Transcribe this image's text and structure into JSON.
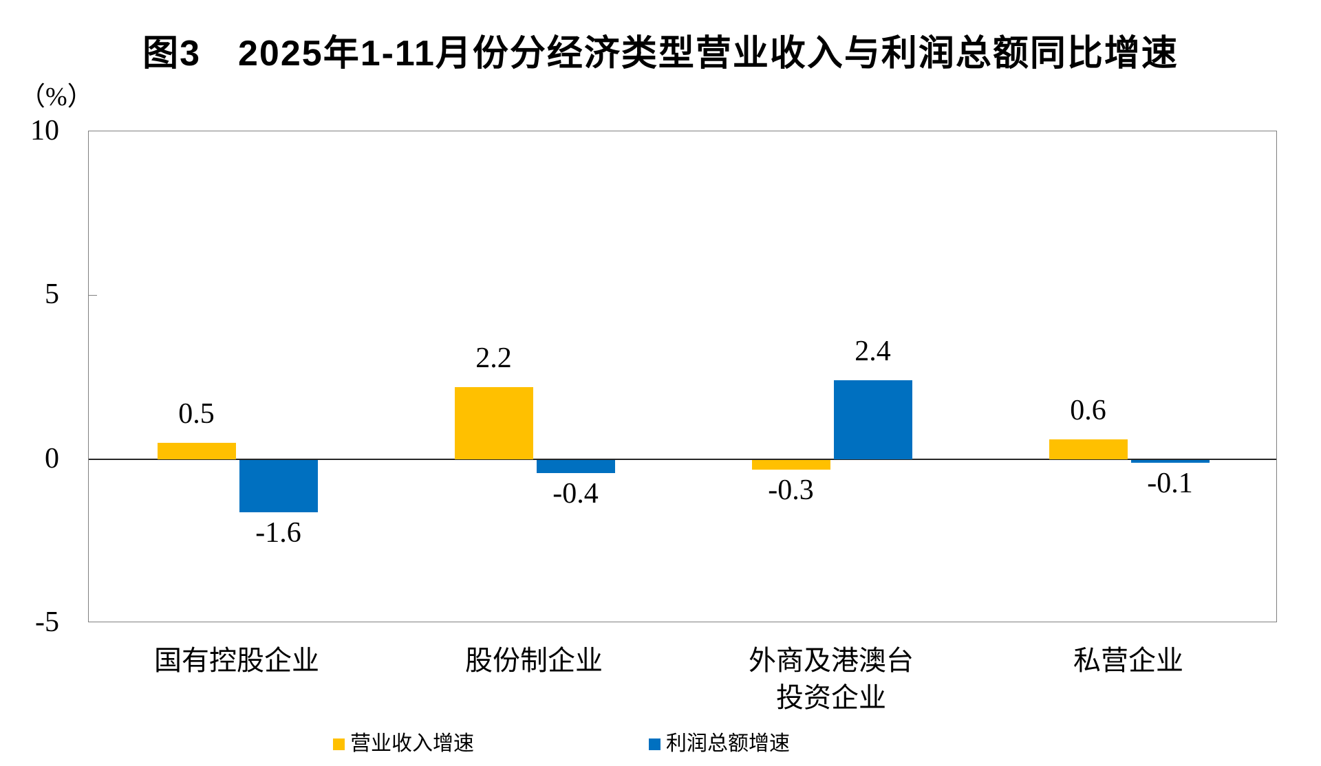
{
  "title": "图3　2025年1-11月份分经济类型营业收入与利润总额同比增速",
  "unit_label": "（%）",
  "chart_data": {
    "type": "bar",
    "categories": [
      "国有控股企业",
      "股份制企业",
      "外商及港澳台\n投资企业",
      "私营企业"
    ],
    "series": [
      {
        "name": "营业收入增速",
        "color": "#FFC000",
        "values": [
          0.5,
          2.2,
          -0.3,
          0.6
        ]
      },
      {
        "name": "利润总额增速",
        "color": "#0070C0",
        "values": [
          -1.6,
          -0.4,
          2.4,
          -0.1
        ]
      }
    ],
    "ylabel": "（%）",
    "ylim": [
      -5,
      10
    ],
    "yticks": [
      10,
      5,
      0,
      -5
    ],
    "grid": false,
    "legend_position": "bottom",
    "data_labels": true,
    "axis_frame_color": "#7f7f7f"
  }
}
